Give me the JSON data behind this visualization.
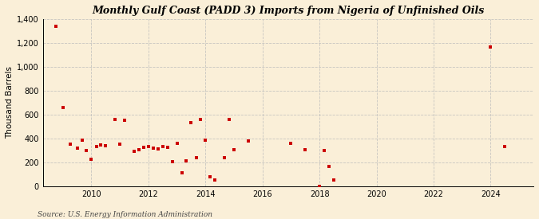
{
  "title": "Gulf Coast (PADD 3) Imports from Nigeria of Unfinished Oils",
  "title_prefix": "Monthly ",
  "ylabel": "Thousand Barrels",
  "source": "Source: U.S. Energy Information Administration",
  "background_color": "#faefd8",
  "marker_color": "#cc0000",
  "grid_color": "#bbbbbb",
  "ylim": [
    0,
    1400
  ],
  "yticks": [
    0,
    200,
    400,
    600,
    800,
    1000,
    1200,
    1400
  ],
  "ytick_labels": [
    "0",
    "200",
    "400",
    "600",
    "800",
    "1,000",
    "1,200",
    "1,400"
  ],
  "xlim": [
    2008.3,
    2025.5
  ],
  "xticks": [
    2010,
    2012,
    2014,
    2016,
    2018,
    2020,
    2022,
    2024
  ],
  "data_points": [
    [
      2008.75,
      1340
    ],
    [
      2009.0,
      660
    ],
    [
      2009.25,
      350
    ],
    [
      2009.5,
      320
    ],
    [
      2009.67,
      385
    ],
    [
      2009.83,
      300
    ],
    [
      2010.0,
      225
    ],
    [
      2010.17,
      330
    ],
    [
      2010.33,
      345
    ],
    [
      2010.5,
      340
    ],
    [
      2010.83,
      560
    ],
    [
      2011.0,
      350
    ],
    [
      2011.17,
      555
    ],
    [
      2011.5,
      290
    ],
    [
      2011.67,
      305
    ],
    [
      2011.83,
      325
    ],
    [
      2012.0,
      330
    ],
    [
      2012.17,
      320
    ],
    [
      2012.33,
      310
    ],
    [
      2012.5,
      330
    ],
    [
      2012.67,
      325
    ],
    [
      2012.83,
      205
    ],
    [
      2013.0,
      360
    ],
    [
      2013.17,
      110
    ],
    [
      2013.33,
      215
    ],
    [
      2013.5,
      530
    ],
    [
      2013.67,
      240
    ],
    [
      2013.83,
      560
    ],
    [
      2014.0,
      385
    ],
    [
      2014.17,
      80
    ],
    [
      2014.33,
      55
    ],
    [
      2014.67,
      240
    ],
    [
      2014.83,
      560
    ],
    [
      2015.0,
      305
    ],
    [
      2015.5,
      380
    ],
    [
      2017.0,
      360
    ],
    [
      2017.5,
      305
    ],
    [
      2018.0,
      0
    ],
    [
      2018.17,
      300
    ],
    [
      2018.33,
      165
    ],
    [
      2018.5,
      50
    ],
    [
      2024.0,
      1165
    ],
    [
      2024.5,
      330
    ]
  ]
}
